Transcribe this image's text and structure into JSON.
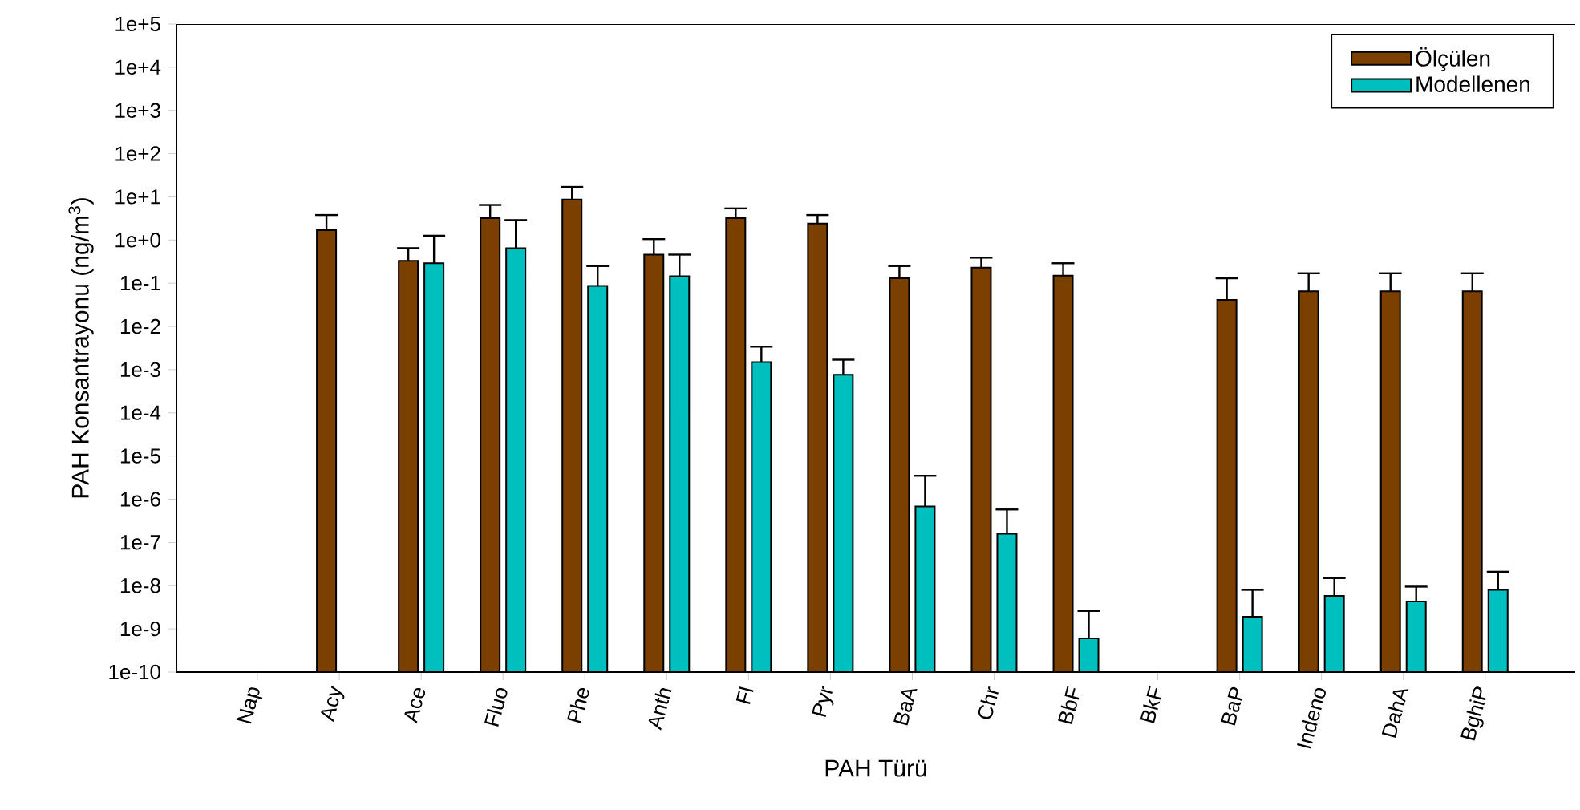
{
  "chart_data": {
    "type": "bar",
    "xlabel": "PAH Türü",
    "ylabel": "PAH Konsantrayonu (ng/m$^{3}$)",
    "log": "y",
    "legend": "top right",
    "categories": [
      "Nap",
      "Acy",
      "Ace",
      "Fluo",
      "Phe",
      "Anth",
      "Fl",
      "Pyr",
      "BaA",
      "Chr",
      "BbF",
      "BkF",
      "BaP",
      "Indeno",
      "DahA",
      "BghiP"
    ],
    "ylim": [
      1e-10,
      100000.0
    ],
    "yticks": [
      {
        "value": 1e-10,
        "label": "1e-10"
      },
      {
        "value": 1e-09,
        "label": "1e-9"
      },
      {
        "value": 1e-08,
        "label": "1e-8"
      },
      {
        "value": 1e-07,
        "label": "1e-7"
      },
      {
        "value": 1e-06,
        "label": "1e-6"
      },
      {
        "value": 1e-05,
        "label": "1e-5"
      },
      {
        "value": 0.0001,
        "label": "1e-4"
      },
      {
        "value": 0.001,
        "label": "1e-3"
      },
      {
        "value": 0.01,
        "label": "1e-2"
      },
      {
        "value": 0.1,
        "label": "1e-1"
      },
      {
        "value": 1,
        "label": "1e+0"
      },
      {
        "value": 10,
        "label": "1e+1"
      },
      {
        "value": 100,
        "label": "1e+2"
      },
      {
        "value": 1000,
        "label": "1e+3"
      },
      {
        "value": 10000,
        "label": "1e+4"
      },
      {
        "value": 100000,
        "label": "1e+5"
      }
    ],
    "series": [
      {
        "name": "Ölçülen",
        "color": "#7b3f00",
        "values": [
          null,
          1.7,
          0.33,
          3.2,
          8.7,
          0.46,
          3.2,
          2.4,
          0.13,
          0.23,
          0.15,
          null,
          0.041,
          0.065,
          0.065,
          0.065
        ],
        "errors": [
          null,
          [
            1.7,
            3.8
          ],
          [
            0.33,
            0.65
          ],
          [
            3.2,
            6.5
          ],
          [
            8.7,
            17
          ],
          [
            0.46,
            1.05
          ],
          [
            3.2,
            5.4
          ],
          [
            2.4,
            3.8
          ],
          [
            0.13,
            0.25
          ],
          [
            0.23,
            0.39
          ],
          [
            0.15,
            0.29
          ],
          null,
          [
            0.041,
            0.13
          ],
          [
            0.065,
            0.17
          ],
          [
            0.065,
            0.17
          ],
          [
            0.065,
            0.17
          ]
        ]
      },
      {
        "name": "Modellenen",
        "color": "#00bfbf",
        "values": [
          null,
          null,
          0.29,
          0.65,
          0.087,
          0.145,
          0.0015,
          0.00076,
          6.8e-07,
          1.6e-07,
          6e-10,
          null,
          1.9e-09,
          5.8e-09,
          4.3e-09,
          8e-09
        ],
        "errors": [
          null,
          null,
          [
            0.29,
            1.26
          ],
          [
            0.65,
            2.9
          ],
          [
            0.087,
            0.25
          ],
          [
            0.145,
            0.46
          ],
          [
            0.0015,
            0.0034
          ],
          [
            0.00076,
            0.0017
          ],
          [
            6.8e-07,
            3.5e-06
          ],
          [
            1.6e-07,
            5.8e-07
          ],
          [
            6e-10,
            2.6e-09
          ],
          null,
          [
            1.9e-09,
            8e-09
          ],
          [
            5.8e-09,
            1.5e-08
          ],
          [
            4.3e-09,
            9.5e-09
          ],
          [
            8e-09,
            2.1e-08
          ]
        ]
      }
    ]
  }
}
